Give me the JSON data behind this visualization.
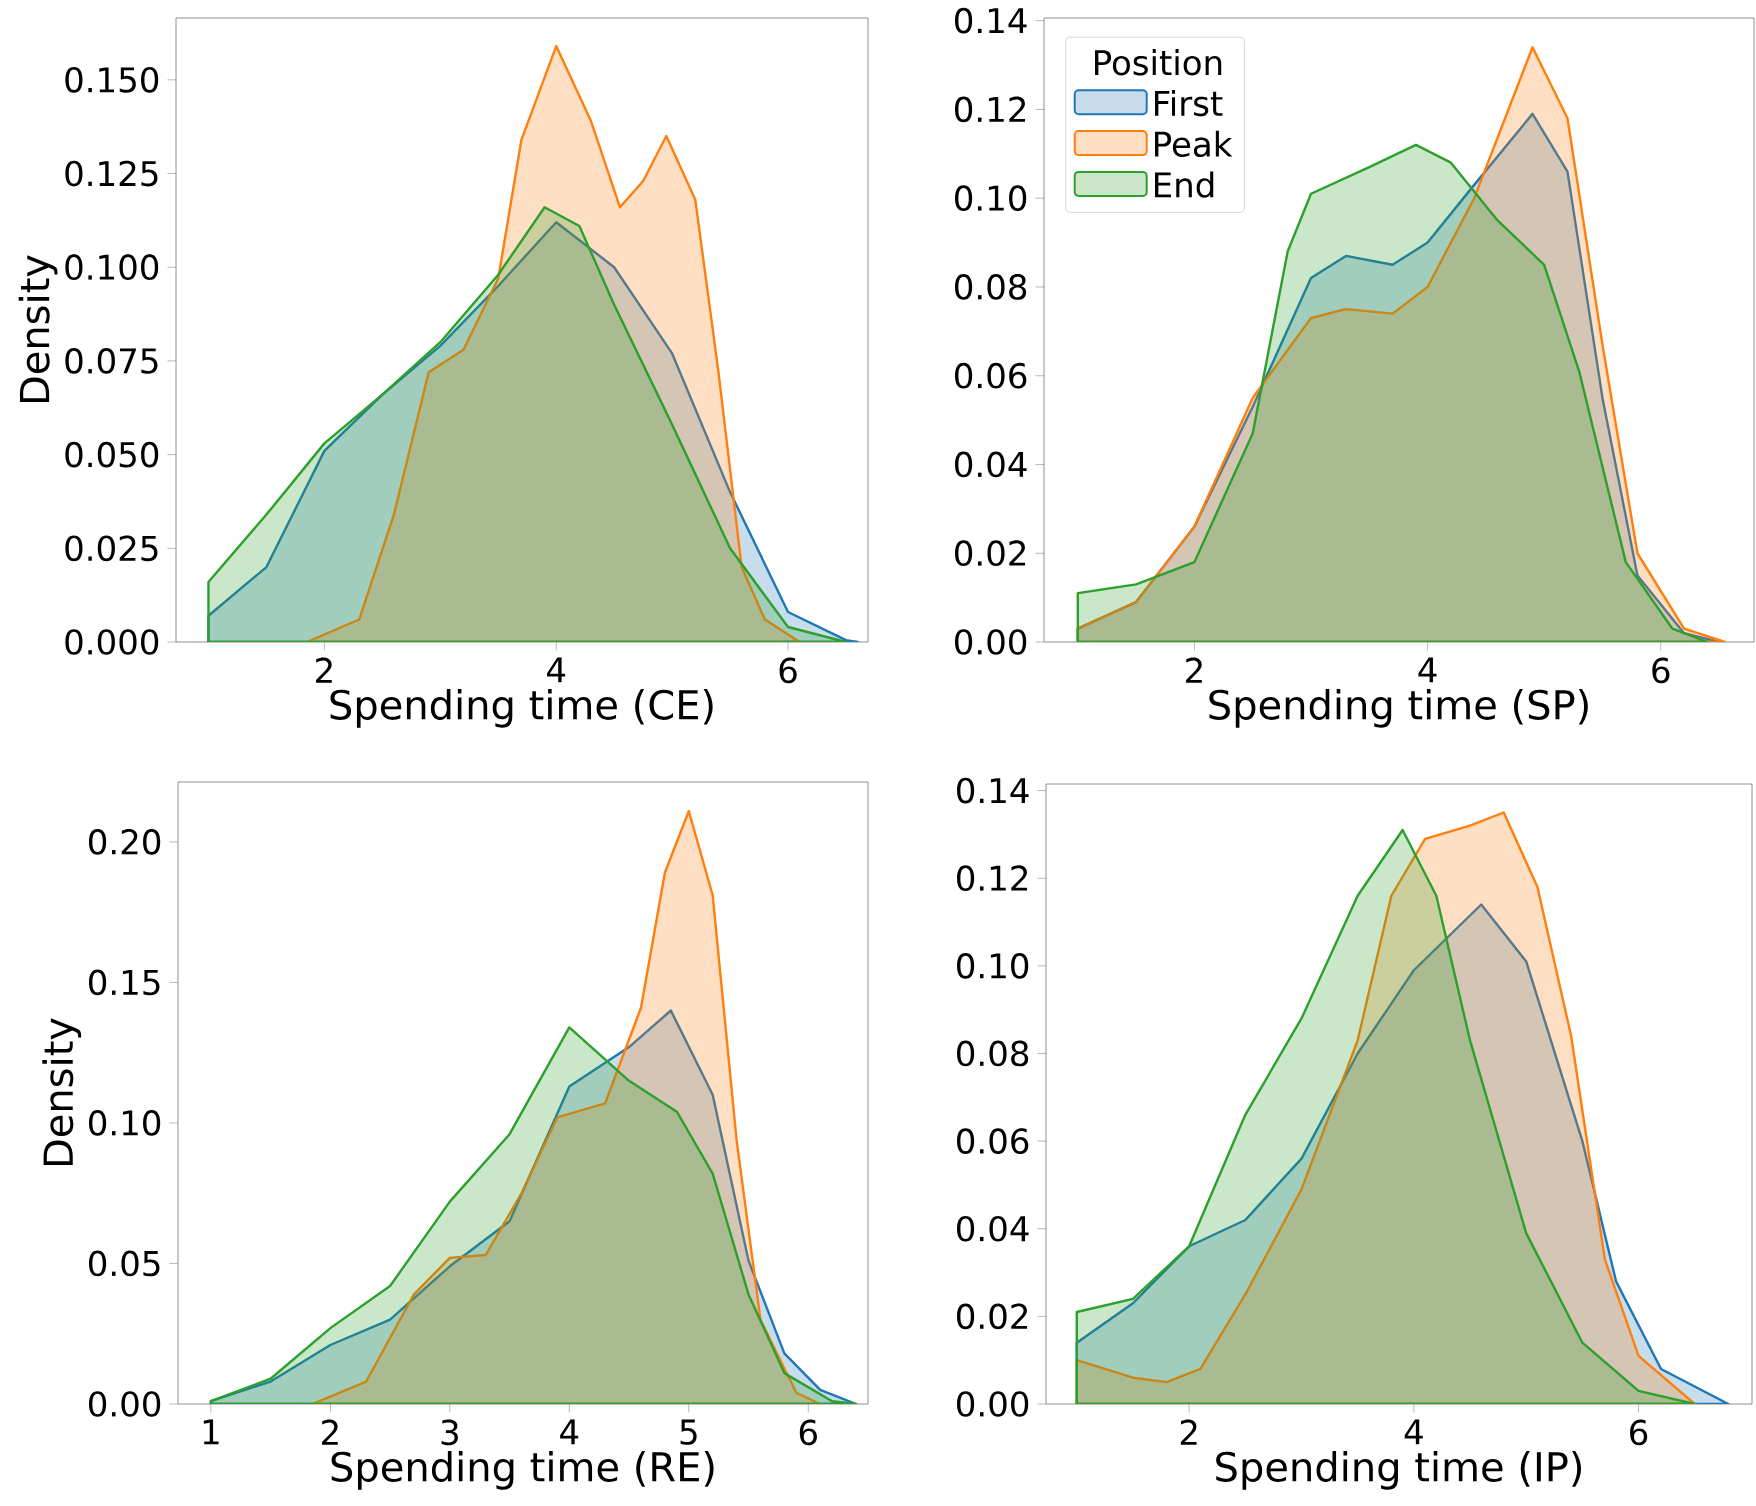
{
  "chart_data": [
    {
      "type": "area",
      "xlabel": "Spending time (CE)",
      "ylabel": "Density",
      "xlim": [
        0.72,
        6.69
      ],
      "ylim": [
        0,
        0.1665
      ],
      "xticks": [
        2,
        4,
        6
      ],
      "yticks": [
        {
          "value": 0,
          "label": "0.000"
        },
        {
          "value": 0.025,
          "label": "0.025"
        },
        {
          "value": 0.05,
          "label": "0.050"
        },
        {
          "value": 0.075,
          "label": "0.075"
        },
        {
          "value": 0.1,
          "label": "0.100"
        },
        {
          "value": 0.125,
          "label": "0.125"
        },
        {
          "value": 0.15,
          "label": "0.150"
        }
      ],
      "series": [
        {
          "color": "#1f77b4",
          "x": [
            1.0,
            1.5,
            2.0,
            2.5,
            3.0,
            3.5,
            4.0,
            4.5,
            5.0,
            5.5,
            6.0,
            6.5,
            6.6
          ],
          "values": [
            0.007,
            0.02,
            0.051,
            0.066,
            0.079,
            0.095,
            0.112,
            0.1,
            0.077,
            0.04,
            0.008,
            0.0005,
            0
          ]
        },
        {
          "color": "#ff7f0e",
          "x": [
            1.85,
            2.3,
            2.6,
            2.9,
            3.2,
            3.5,
            3.7,
            4.0,
            4.3,
            4.55,
            4.75,
            4.95,
            5.2,
            5.4,
            5.6,
            5.8,
            6.1
          ],
          "values": [
            0,
            0.006,
            0.034,
            0.072,
            0.078,
            0.097,
            0.134,
            0.159,
            0.139,
            0.116,
            0.123,
            0.135,
            0.118,
            0.072,
            0.02,
            0.006,
            0
          ]
        },
        {
          "color": "#2ca02c",
          "x": [
            1.0,
            1.5,
            2.0,
            2.5,
            3.0,
            3.5,
            3.9,
            4.2,
            4.5,
            5.0,
            5.5,
            6.0,
            6.5
          ],
          "values": [
            0.016,
            0.034,
            0.053,
            0.066,
            0.08,
            0.098,
            0.116,
            0.111,
            0.09,
            0.058,
            0.025,
            0.004,
            0
          ]
        }
      ]
    },
    {
      "type": "area",
      "xlabel": "Spending time (SP)",
      "xlim": [
        0.71,
        6.8
      ],
      "ylim": [
        0,
        0.1406
      ],
      "xticks": [
        2,
        4,
        6
      ],
      "legend": "top left",
      "legend_title": "Position",
      "yticks": [
        {
          "value": 0,
          "label": "0.00"
        },
        {
          "value": 0.02,
          "label": "0.02"
        },
        {
          "value": 0.04,
          "label": "0.04"
        },
        {
          "value": 0.06,
          "label": "0.06"
        },
        {
          "value": 0.08,
          "label": "0.08"
        },
        {
          "value": 0.1,
          "label": "0.10"
        },
        {
          "value": 0.12,
          "label": "0.12"
        },
        {
          "value": 0.14,
          "label": "0.14"
        }
      ],
      "series": [
        {
          "name": "First",
          "color": "#1f77b4",
          "x": [
            1.0,
            1.5,
            2.0,
            2.5,
            3.0,
            3.3,
            3.7,
            4.0,
            4.4,
            4.9,
            5.2,
            5.5,
            5.8,
            6.2,
            6.5
          ],
          "values": [
            0.003,
            0.009,
            0.026,
            0.053,
            0.082,
            0.087,
            0.085,
            0.09,
            0.103,
            0.119,
            0.106,
            0.055,
            0.015,
            0.002,
            0
          ]
        },
        {
          "name": "Peak",
          "color": "#ff7f0e",
          "x": [
            1.0,
            1.5,
            2.0,
            2.5,
            3.0,
            3.3,
            3.7,
            4.0,
            4.4,
            4.9,
            5.2,
            5.5,
            5.8,
            6.2,
            6.55
          ],
          "values": [
            0.003,
            0.009,
            0.026,
            0.055,
            0.073,
            0.075,
            0.074,
            0.08,
            0.1,
            0.134,
            0.118,
            0.067,
            0.02,
            0.003,
            0
          ]
        },
        {
          "name": "End",
          "color": "#2ca02c",
          "x": [
            1.0,
            1.5,
            2.0,
            2.5,
            2.8,
            3.0,
            3.5,
            3.9,
            4.2,
            4.6,
            5.0,
            5.3,
            5.7,
            6.1,
            6.4
          ],
          "values": [
            0.011,
            0.013,
            0.018,
            0.047,
            0.088,
            0.101,
            0.107,
            0.112,
            0.108,
            0.095,
            0.085,
            0.061,
            0.018,
            0.003,
            0
          ]
        }
      ]
    },
    {
      "type": "area",
      "xlabel": "Spending time (RE)",
      "ylabel": "Density",
      "xlim": [
        0.725,
        6.5
      ],
      "ylim": [
        0,
        0.2213
      ],
      "xticks": [
        1,
        2,
        3,
        4,
        5,
        6
      ],
      "yticks": [
        {
          "value": 0,
          "label": "0.00"
        },
        {
          "value": 0.05,
          "label": "0.05"
        },
        {
          "value": 0.1,
          "label": "0.10"
        },
        {
          "value": 0.15,
          "label": "0.15"
        },
        {
          "value": 0.2,
          "label": "0.20"
        }
      ],
      "series": [
        {
          "color": "#1f77b4",
          "x": [
            1.0,
            1.5,
            2.0,
            2.5,
            3.0,
            3.5,
            4.0,
            4.5,
            4.85,
            5.2,
            5.5,
            5.8,
            6.1,
            6.4
          ],
          "values": [
            0.001,
            0.008,
            0.021,
            0.03,
            0.049,
            0.065,
            0.113,
            0.127,
            0.14,
            0.11,
            0.051,
            0.018,
            0.005,
            0
          ]
        },
        {
          "color": "#ff7f0e",
          "x": [
            1.85,
            2.3,
            2.7,
            3.0,
            3.3,
            3.6,
            3.9,
            4.3,
            4.6,
            4.8,
            5.0,
            5.2,
            5.4,
            5.6,
            5.9,
            6.1
          ],
          "values": [
            0,
            0.008,
            0.039,
            0.052,
            0.053,
            0.075,
            0.102,
            0.107,
            0.141,
            0.189,
            0.211,
            0.181,
            0.094,
            0.03,
            0.004,
            0
          ]
        },
        {
          "color": "#2ca02c",
          "x": [
            1.0,
            1.5,
            2.0,
            2.5,
            3.0,
            3.5,
            4.0,
            4.5,
            4.9,
            5.2,
            5.5,
            5.8,
            6.2,
            6.4
          ],
          "values": [
            0.001,
            0.009,
            0.027,
            0.042,
            0.072,
            0.096,
            0.134,
            0.115,
            0.104,
            0.082,
            0.039,
            0.011,
            0.001,
            0
          ]
        }
      ]
    },
    {
      "type": "area",
      "xlabel": "Spending time (IP)",
      "xlim": [
        0.726,
        7.01
      ],
      "ylim": [
        0,
        0.1415
      ],
      "xticks": [
        2,
        4,
        6
      ],
      "yticks": [
        {
          "value": 0,
          "label": "0.00"
        },
        {
          "value": 0.02,
          "label": "0.02"
        },
        {
          "value": 0.04,
          "label": "0.04"
        },
        {
          "value": 0.06,
          "label": "0.06"
        },
        {
          "value": 0.08,
          "label": "0.08"
        },
        {
          "value": 0.1,
          "label": "0.10"
        },
        {
          "value": 0.12,
          "label": "0.12"
        },
        {
          "value": 0.14,
          "label": "0.14"
        }
      ],
      "series": [
        {
          "color": "#1f77b4",
          "x": [
            1.0,
            1.5,
            2.0,
            2.5,
            3.0,
            3.5,
            4.0,
            4.6,
            5.0,
            5.5,
            5.8,
            6.2,
            6.8
          ],
          "values": [
            0.014,
            0.023,
            0.036,
            0.042,
            0.056,
            0.08,
            0.099,
            0.114,
            0.101,
            0.06,
            0.028,
            0.008,
            0
          ]
        },
        {
          "color": "#ff7f0e",
          "x": [
            1.0,
            1.5,
            1.8,
            2.1,
            2.5,
            3.0,
            3.5,
            3.8,
            4.1,
            4.5,
            4.8,
            5.1,
            5.4,
            5.7,
            6.0,
            6.5
          ],
          "values": [
            0.01,
            0.006,
            0.005,
            0.008,
            0.025,
            0.049,
            0.083,
            0.116,
            0.129,
            0.132,
            0.135,
            0.118,
            0.084,
            0.033,
            0.011,
            0
          ]
        },
        {
          "color": "#2ca02c",
          "x": [
            1.0,
            1.5,
            2.0,
            2.5,
            3.0,
            3.5,
            3.9,
            4.2,
            4.5,
            5.0,
            5.5,
            6.0,
            6.5
          ],
          "values": [
            0.021,
            0.024,
            0.036,
            0.066,
            0.088,
            0.116,
            0.131,
            0.116,
            0.083,
            0.039,
            0.014,
            0.003,
            0
          ]
        }
      ]
    }
  ]
}
